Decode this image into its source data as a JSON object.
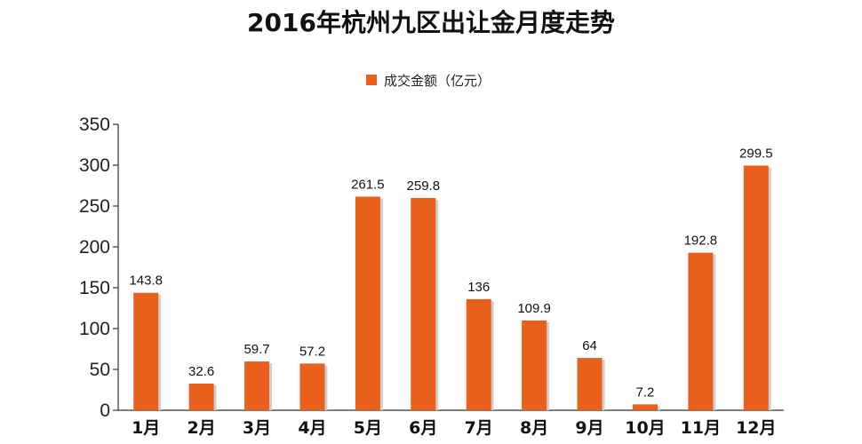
{
  "chart_data": {
    "type": "bar",
    "title": "2016年杭州九区出让金月度走势",
    "xlabel": "",
    "ylabel": "",
    "ylim": [
      0,
      350
    ],
    "yticks": [
      0,
      50,
      100,
      150,
      200,
      250,
      300,
      350
    ],
    "grid": false,
    "legend_position": "top-center",
    "categories": [
      "1月",
      "2月",
      "3月",
      "4月",
      "5月",
      "6月",
      "7月",
      "8月",
      "9月",
      "10月",
      "11月",
      "12月"
    ],
    "series": [
      {
        "name": "成交金额（亿元）",
        "color": "#E8601C",
        "values": [
          143.8,
          32.6,
          59.7,
          57.2,
          261.5,
          259.8,
          136,
          109.9,
          64,
          7.2,
          192.8,
          299.5
        ],
        "labels": [
          "143.8",
          "32.6",
          "59.7",
          "57.2",
          "261.5",
          "259.8",
          "136",
          "109.9",
          "64",
          "7.2",
          "192.8",
          "299.5"
        ]
      }
    ]
  }
}
